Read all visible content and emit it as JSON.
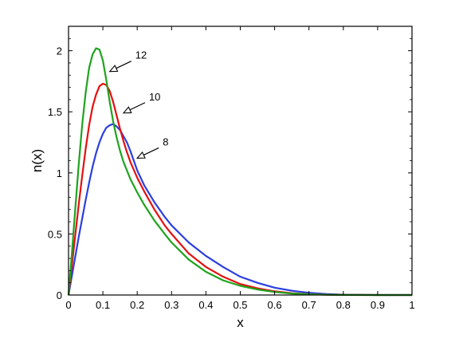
{
  "chart_data": {
    "type": "line",
    "title": "",
    "xlabel": "x",
    "ylabel": "n(x)",
    "xlim": [
      0,
      1
    ],
    "ylim": [
      0,
      2.2
    ],
    "xticks": [
      "0",
      "0.1",
      "0.2",
      "0.3",
      "0.4",
      "0.5",
      "0.6",
      "0.7",
      "0.8",
      "0.9",
      "1"
    ],
    "yticks": [
      "0",
      "0.5",
      "1",
      "1.5",
      "2"
    ],
    "grid": false,
    "legend": "none",
    "series": [
      {
        "color": "#2b3fe0",
        "x": [
          0,
          0.01,
          0.02,
          0.03,
          0.04,
          0.05,
          0.06,
          0.07,
          0.08,
          0.09,
          0.1,
          0.11,
          0.12,
          0.13,
          0.14,
          0.15,
          0.16,
          0.17,
          0.18,
          0.19,
          0.2,
          0.22,
          0.25,
          0.28,
          0.3,
          0.35,
          0.4,
          0.45,
          0.5,
          0.55,
          0.6,
          0.65,
          0.7,
          0.75,
          0.8,
          0.9,
          1.0
        ],
        "y": [
          0,
          0.16,
          0.32,
          0.48,
          0.63,
          0.78,
          0.92,
          1.05,
          1.16,
          1.25,
          1.32,
          1.37,
          1.39,
          1.4,
          1.38,
          1.35,
          1.3,
          1.25,
          1.18,
          1.1,
          1.02,
          0.9,
          0.76,
          0.64,
          0.57,
          0.43,
          0.32,
          0.23,
          0.15,
          0.1,
          0.06,
          0.035,
          0.018,
          0.008,
          0.003,
          0.0,
          0.0
        ]
      },
      {
        "color": "#e51010",
        "x": [
          0,
          0.01,
          0.02,
          0.03,
          0.04,
          0.05,
          0.06,
          0.07,
          0.08,
          0.09,
          0.1,
          0.11,
          0.12,
          0.13,
          0.14,
          0.15,
          0.16,
          0.17,
          0.18,
          0.2,
          0.22,
          0.25,
          0.28,
          0.3,
          0.35,
          0.4,
          0.45,
          0.5,
          0.55,
          0.6,
          0.65,
          0.7,
          0.75,
          0.8,
          0.9,
          1.0
        ],
        "y": [
          0,
          0.25,
          0.5,
          0.75,
          0.98,
          1.2,
          1.39,
          1.54,
          1.64,
          1.71,
          1.73,
          1.72,
          1.67,
          1.58,
          1.47,
          1.36,
          1.26,
          1.17,
          1.09,
          0.96,
          0.85,
          0.7,
          0.57,
          0.5,
          0.34,
          0.23,
          0.15,
          0.09,
          0.055,
          0.03,
          0.015,
          0.007,
          0.003,
          0.001,
          0,
          0
        ]
      },
      {
        "color": "#1fa31f",
        "x": [
          0,
          0.01,
          0.02,
          0.03,
          0.04,
          0.05,
          0.06,
          0.07,
          0.08,
          0.09,
          0.1,
          0.11,
          0.12,
          0.13,
          0.14,
          0.15,
          0.16,
          0.17,
          0.18,
          0.2,
          0.22,
          0.25,
          0.28,
          0.3,
          0.35,
          0.4,
          0.45,
          0.5,
          0.55,
          0.6,
          0.65,
          0.7,
          0.75,
          0.8,
          0.9,
          1.0
        ],
        "y": [
          0,
          0.35,
          0.72,
          1.08,
          1.4,
          1.66,
          1.86,
          1.97,
          2.02,
          2.01,
          1.92,
          1.76,
          1.58,
          1.42,
          1.29,
          1.18,
          1.09,
          1.02,
          0.95,
          0.84,
          0.74,
          0.61,
          0.5,
          0.43,
          0.29,
          0.19,
          0.12,
          0.075,
          0.045,
          0.025,
          0.012,
          0.006,
          0.002,
          0.001,
          0,
          0
        ]
      }
    ],
    "annotations": [
      {
        "text": "8",
        "x": 0.2,
        "y": 1.12,
        "color": "#2b3fe0"
      },
      {
        "text": "10",
        "x": 0.16,
        "y": 1.49,
        "color": "#e51010"
      },
      {
        "text": "12",
        "x": 0.12,
        "y": 1.83,
        "color": "#1fa31f"
      }
    ]
  }
}
